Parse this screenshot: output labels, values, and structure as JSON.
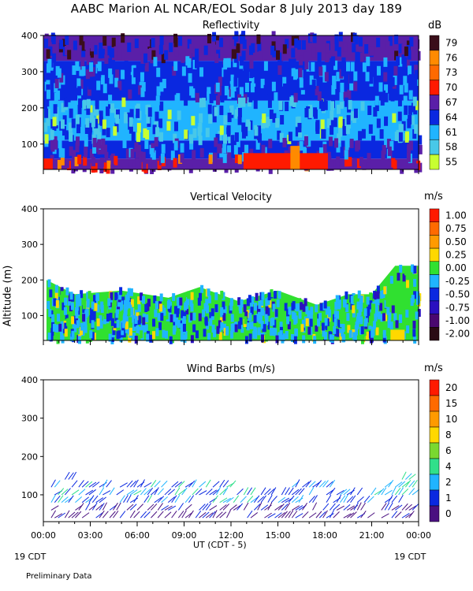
{
  "title": "AABC Marion AL NCAR/EOL Sodar    8 July 2013 day 189",
  "footer": {
    "cdt_left": "19 CDT",
    "cdt_right": "19 CDT",
    "note": "Preliminary Data",
    "xaxis_label": "UT  (CDT - 5)"
  },
  "chart_data": [
    {
      "type": "heatmap",
      "title": "Reflectivity",
      "units": "dB",
      "ylabel": "",
      "xlabel": "UT  (CDT - 5)",
      "ylim": [
        30,
        400
      ],
      "xlim": [
        0,
        24
      ],
      "y_ticks": [
        "100",
        "200",
        "300",
        "400"
      ],
      "y_tick_values": [
        100,
        200,
        300,
        400
      ],
      "x_ticks": [
        "00:00",
        "03:00",
        "06:00",
        "09:00",
        "12:00",
        "15:00",
        "18:00",
        "21:00",
        "00:00"
      ],
      "colorbar": {
        "labels": [
          "79",
          "76",
          "73",
          "70",
          "67",
          "64",
          "61",
          "58",
          "55"
        ],
        "colors": [
          "#3a0e1a",
          "#ff8a00",
          "#ff6a00",
          "#ff1a00",
          "#5a1fa8",
          "#0a28e0",
          "#20b4ff",
          "#48c8e8",
          "#c8ff30"
        ]
      },
      "bands": [
        {
          "from_alt": 30,
          "to_alt": 60,
          "value_db": 68
        },
        {
          "from_alt": 60,
          "to_alt": 110,
          "value_db": 64
        },
        {
          "from_alt": 110,
          "to_alt": 220,
          "value_db": 61
        },
        {
          "from_alt": 220,
          "to_alt": 330,
          "value_db": 64
        },
        {
          "from_alt": 330,
          "to_alt": 400,
          "value_db": 67
        }
      ]
    },
    {
      "type": "heatmap",
      "title": "Vertical Velocity",
      "units": "m/s",
      "ylabel": "Altitude (m)",
      "ylim": [
        30,
        400
      ],
      "xlim": [
        0,
        24
      ],
      "y_ticks": [
        "100",
        "200",
        "300",
        "400"
      ],
      "y_tick_values": [
        100,
        200,
        300,
        400
      ],
      "x_ticks": [
        "00:00",
        "03:00",
        "06:00",
        "09:00",
        "12:00",
        "15:00",
        "18:00",
        "21:00",
        "00:00"
      ],
      "colorbar": {
        "labels": [
          "1.00",
          "0.75",
          "0.50",
          "0.25",
          "0.00",
          "-0.25",
          "-0.50",
          "-0.75",
          "-1.00",
          "-2.00"
        ],
        "colors": [
          "#ff1a00",
          "#ff6a00",
          "#ff9a00",
          "#ffd800",
          "#30e030",
          "#20b4ff",
          "#0a28e0",
          "#2a10c0",
          "#4a0870",
          "#2a0a14"
        ]
      },
      "coverage_top_alt": [
        [
          0.2,
          200
        ],
        [
          2.0,
          160
        ],
        [
          5.0,
          170
        ],
        [
          8.0,
          150
        ],
        [
          10.0,
          180
        ],
        [
          12.5,
          140
        ],
        [
          15.0,
          170
        ],
        [
          17.5,
          130
        ],
        [
          19.5,
          160
        ],
        [
          21.0,
          160
        ],
        [
          22.5,
          240
        ],
        [
          24,
          240
        ]
      ]
    },
    {
      "type": "scatter",
      "title": "Wind Barbs (m/s)",
      "units": "m/s",
      "ylabel": "",
      "ylim": [
        30,
        400
      ],
      "xlim": [
        0,
        24
      ],
      "y_ticks": [
        "100",
        "200",
        "300",
        "400"
      ],
      "y_tick_values": [
        100,
        200,
        300,
        400
      ],
      "x_ticks": [
        "00:00",
        "03:00",
        "06:00",
        "09:00",
        "12:00",
        "15:00",
        "18:00",
        "21:00",
        "00:00"
      ],
      "colorbar": {
        "labels": [
          "20",
          "15",
          "10",
          "8",
          "6",
          "4",
          "2",
          "1",
          "0"
        ],
        "colors": [
          "#ff1a00",
          "#ff6a00",
          "#ff9a00",
          "#ffd800",
          "#7ad830",
          "#30e08a",
          "#20b4ff",
          "#0a28e0",
          "#4a1080"
        ]
      },
      "barb_altitudes": [
        40,
        60,
        80,
        100,
        120,
        140,
        160
      ],
      "barb_max_alt_by_hour": [
        [
          0.5,
          120
        ],
        [
          1.5,
          160
        ],
        [
          3.0,
          120
        ],
        [
          6.0,
          120
        ],
        [
          9.0,
          120
        ],
        [
          12.0,
          120
        ],
        [
          15.0,
          100
        ],
        [
          16.5,
          140
        ],
        [
          18.5,
          120
        ],
        [
          21.0,
          100
        ],
        [
          22.5,
          140
        ],
        [
          23.8,
          160
        ]
      ]
    }
  ]
}
